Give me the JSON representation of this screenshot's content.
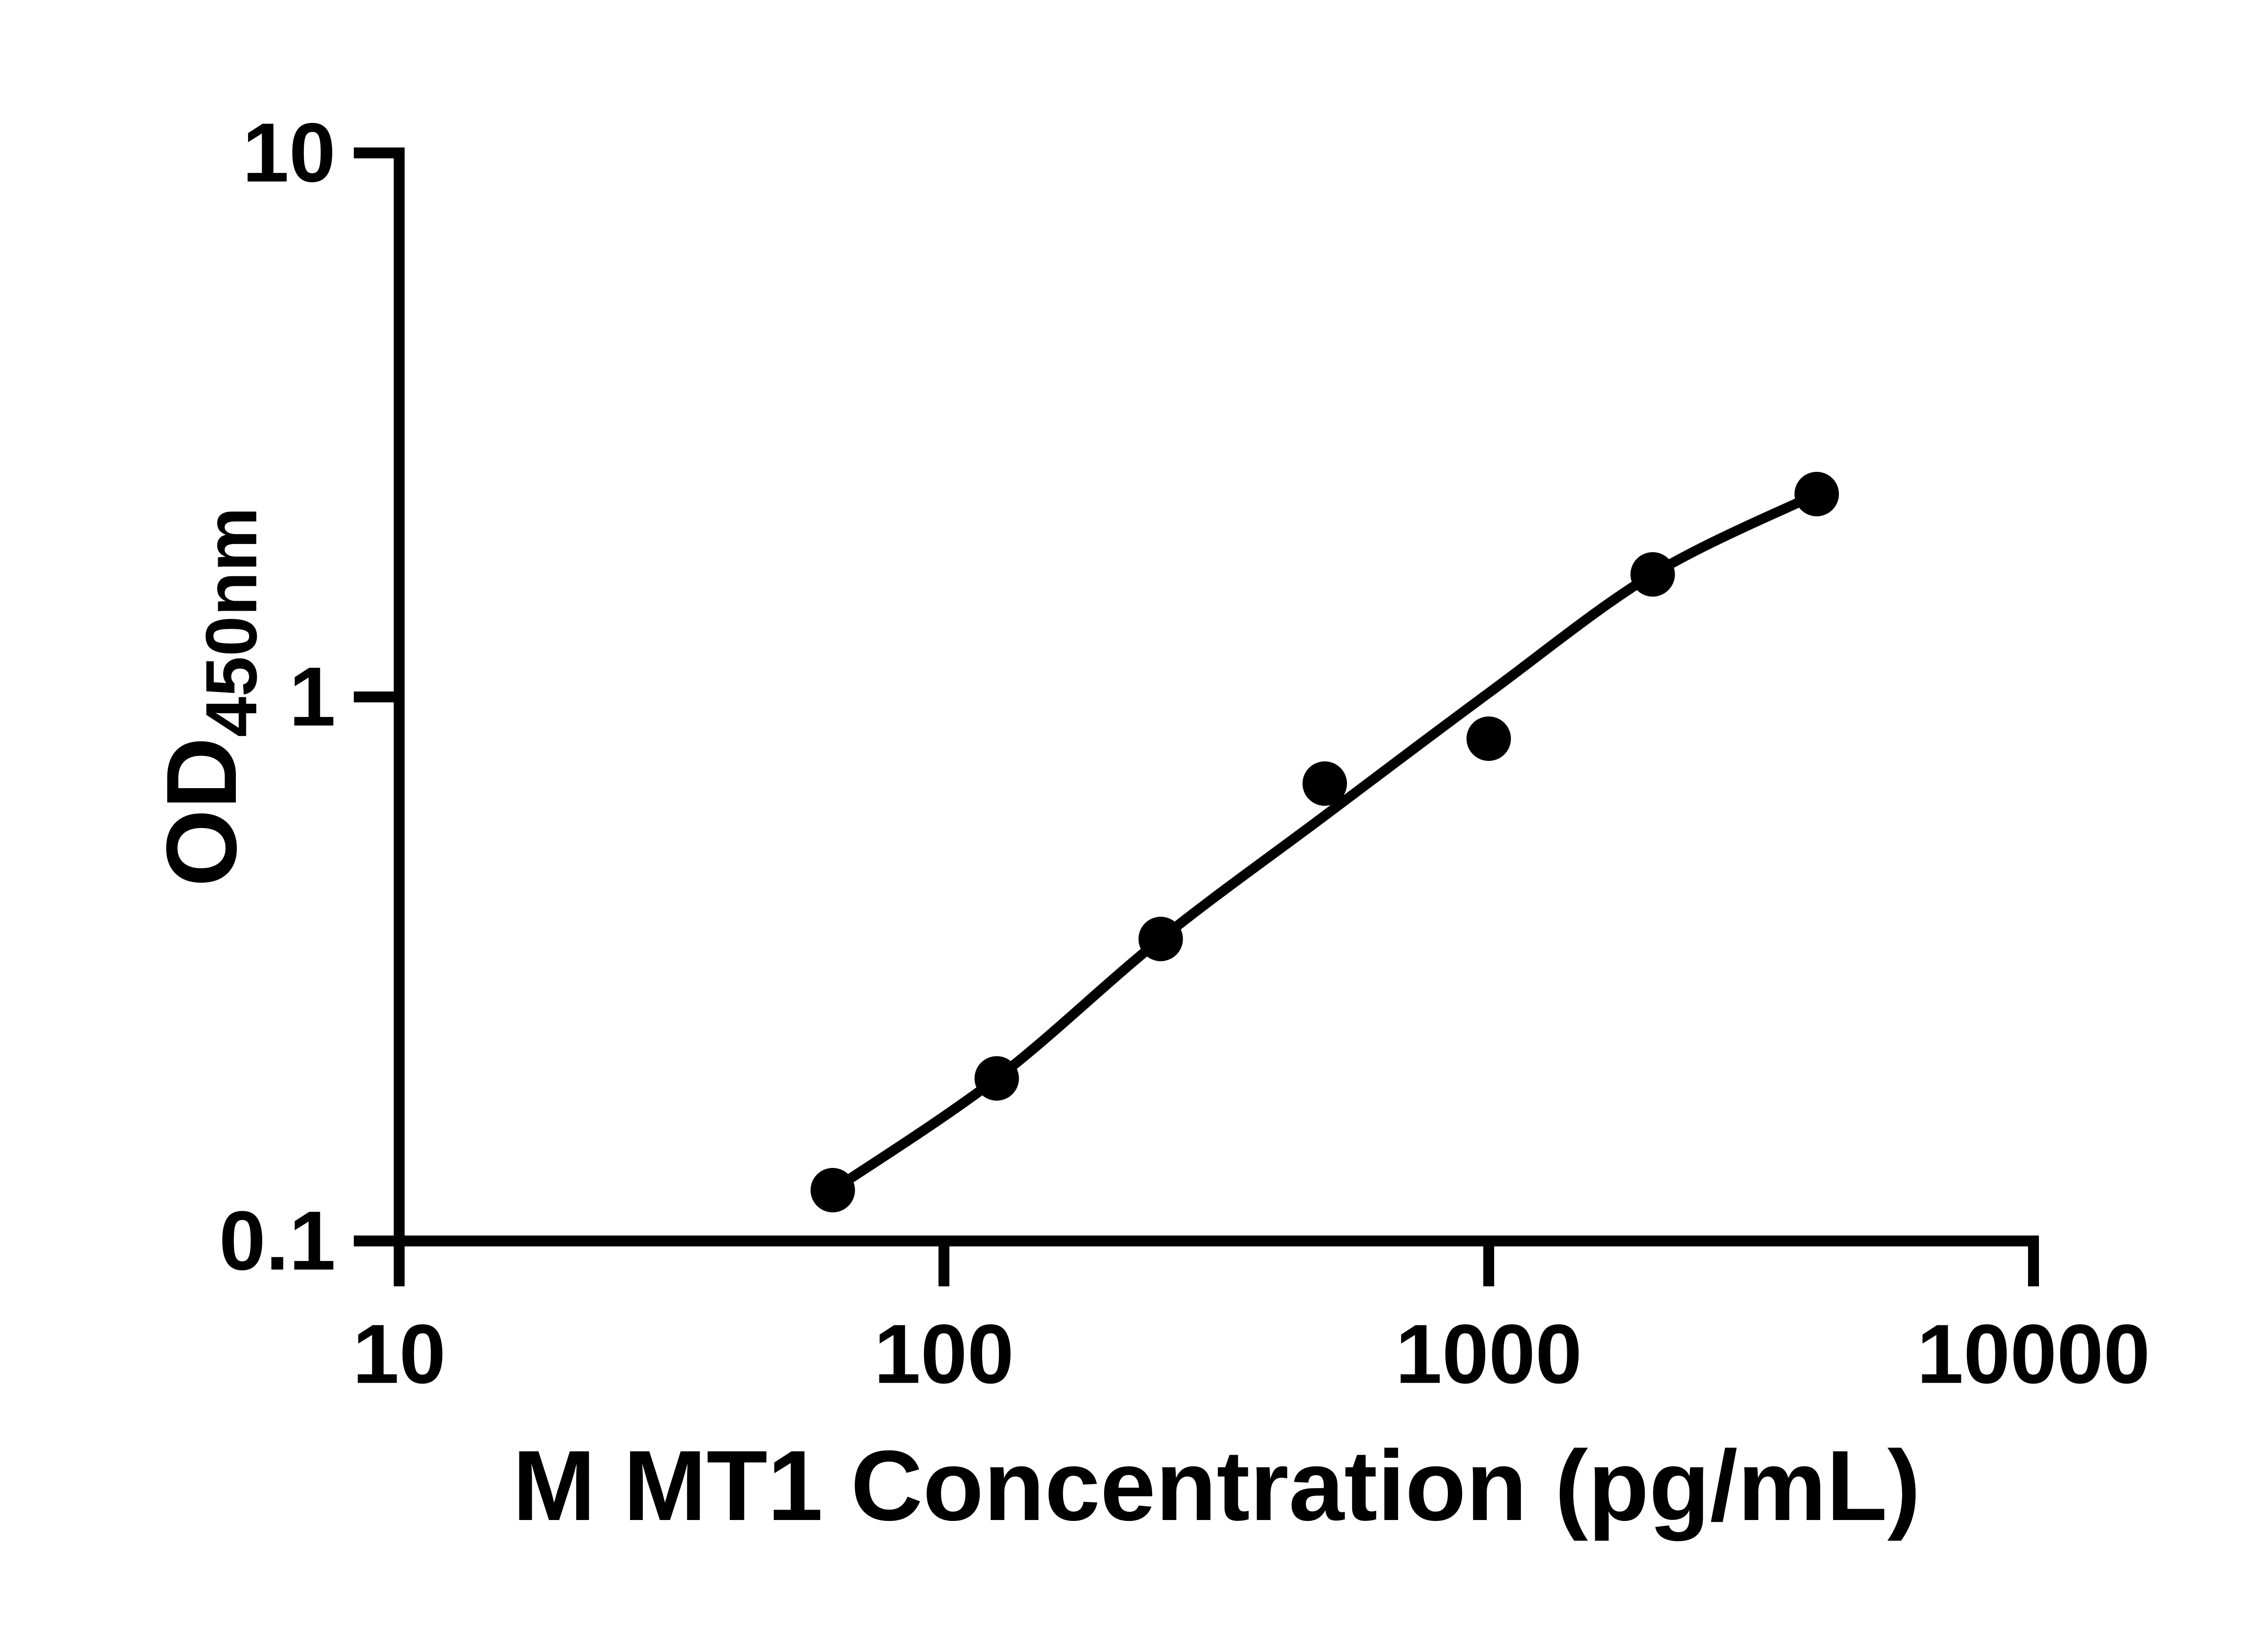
{
  "figure": {
    "background_color": "#ffffff",
    "foreground_color": "#000000"
  },
  "chart_data": {
    "type": "scatter",
    "title": "",
    "xlabel": "M MT1 Concentration (pg/mL)",
    "ylabel": "OD",
    "ylabel_subscript": "450nm",
    "x_scale": "log10",
    "y_scale": "log10",
    "xlim": [
      10,
      10000
    ],
    "ylim": [
      0.1,
      10
    ],
    "grid": false,
    "legend_position": "none",
    "x_ticks": [
      {
        "value": 10,
        "label": "10"
      },
      {
        "value": 100,
        "label": "100"
      },
      {
        "value": 1000,
        "label": "1000"
      },
      {
        "value": 10000,
        "label": "10000"
      }
    ],
    "y_ticks": [
      {
        "value": 0.1,
        "label": "0.1"
      },
      {
        "value": 1,
        "label": "1"
      },
      {
        "value": 10,
        "label": "10"
      }
    ],
    "series": [
      {
        "name": "standard-curve-points",
        "marker_shape": "circle",
        "marker_color": "#000000",
        "points": [
          {
            "x": 62.5,
            "y": 0.124
          },
          {
            "x": 125,
            "y": 0.199
          },
          {
            "x": 250,
            "y": 0.359
          },
          {
            "x": 500,
            "y": 0.693
          },
          {
            "x": 1000,
            "y": 0.838
          },
          {
            "x": 2000,
            "y": 1.68
          },
          {
            "x": 4000,
            "y": 2.36
          }
        ]
      }
    ],
    "fit_line": {
      "name": "4pl-fit-curve",
      "color": "#000000",
      "points": [
        {
          "x": 62.5,
          "y": 0.124
        },
        {
          "x": 125,
          "y": 0.199
        },
        {
          "x": 250,
          "y": 0.359
        },
        {
          "x": 500,
          "y": 0.605
        },
        {
          "x": 1000,
          "y": 1.017
        },
        {
          "x": 2000,
          "y": 1.68
        },
        {
          "x": 4000,
          "y": 2.36
        }
      ]
    }
  }
}
